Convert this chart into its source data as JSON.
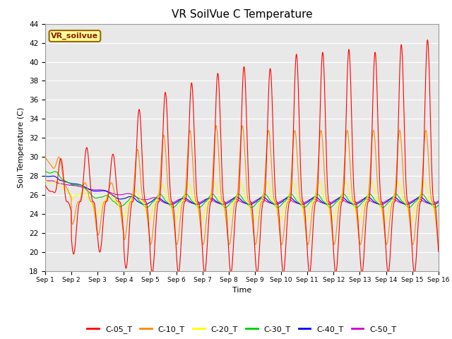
{
  "title": "VR SoilVue C Temperature",
  "xlabel": "Time",
  "ylabel": "Soil Temperature (C)",
  "ylim": [
    18,
    44
  ],
  "yticks": [
    18,
    20,
    22,
    24,
    26,
    28,
    30,
    32,
    34,
    36,
    38,
    40,
    42,
    44
  ],
  "bg_color": "#e8e8e8",
  "fig_color": "#ffffff",
  "watermark_text": "VR_soilvue",
  "watermark_bg": "#ffff99",
  "watermark_border": "#996600",
  "series_colors": {
    "C-05_T": "#ff0000",
    "C-10_T": "#ff8800",
    "C-20_T": "#ffff00",
    "C-30_T": "#00cc00",
    "C-40_T": "#0000ff",
    "C-50_T": "#cc00cc"
  },
  "base_temp": 25.3,
  "x_tick_labels": [
    "Sep 1",
    "Sep 2",
    "Sep 3",
    "Sep 4",
    "Sep 5",
    "Sep 6",
    "Sep 7",
    "Sep 8",
    "Sep 9",
    "Sep 10",
    "Sep 11",
    "Sep 12",
    "Sep 13",
    "Sep 14",
    "Sep 15",
    "Sep 16"
  ]
}
